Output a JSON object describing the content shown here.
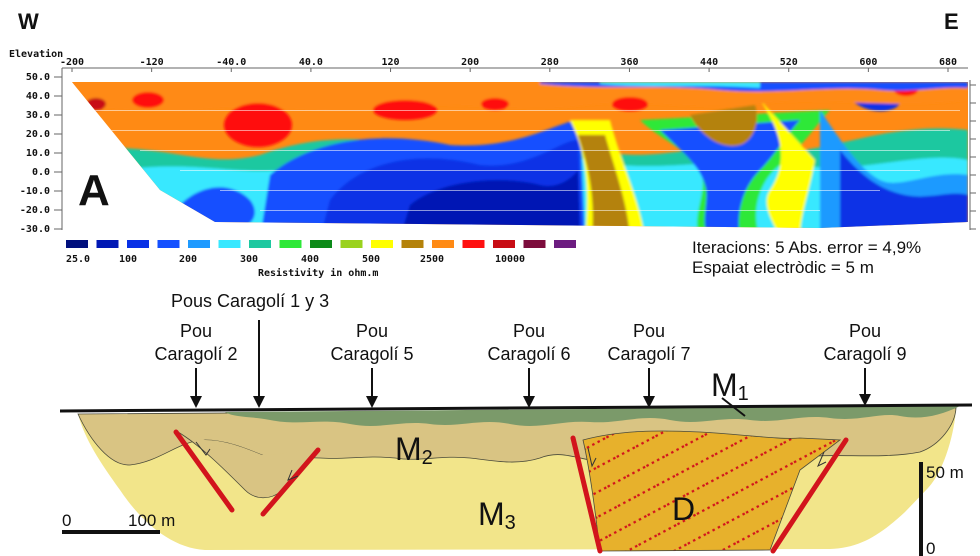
{
  "compass": {
    "west": "W",
    "east": "E"
  },
  "panel_label": "A",
  "section": {
    "elevation_label": "Elevation",
    "x_ticks": [
      "-200",
      "-120",
      "-40.0",
      "40.0",
      "120",
      "200",
      "280",
      "360",
      "440",
      "520",
      "600",
      "680"
    ],
    "y_ticks": [
      "50.0",
      "40.0",
      "30.0",
      "20.0",
      "10.0",
      "0.0",
      "-10.0",
      "-20.0",
      "-30.0"
    ]
  },
  "legend": {
    "title": "Resistivity in ohm.m",
    "swatch_colors": [
      "#000f7d",
      "#0018b4",
      "#0830e6",
      "#1450ff",
      "#1e9aff",
      "#38e8ff",
      "#1ec8a0",
      "#2ee838",
      "#0c8a18",
      "#9ad21e",
      "#ffff00",
      "#b4820a",
      "#ff8a14",
      "#ff1010",
      "#c80c14",
      "#7c0c3c",
      "#6c1c80"
    ],
    "tick_labels": [
      "25.0",
      "100",
      "200",
      "300",
      "400",
      "500",
      "2500",
      "10000"
    ]
  },
  "inversion_info": {
    "line1": "Iteracions: 5 Abs. error = 4,9%",
    "line2": "Espaiat electròdic = 5 m"
  },
  "wells": [
    {
      "line1": "Pous Caragolí 1 y 3",
      "line2": ""
    },
    {
      "line1": "Pou",
      "line2": "Caragolí 2"
    },
    {
      "line1": "Pou",
      "line2": "Caragolí 5"
    },
    {
      "line1": "Pou",
      "line2": "Caragolí 6"
    },
    {
      "line1": "Pou",
      "line2": "Caragolí 7"
    },
    {
      "line1": "Pou",
      "line2": "Caragolí 9"
    }
  ],
  "units": {
    "m1": {
      "base": "M",
      "sub": "1"
    },
    "m2": {
      "base": "M",
      "sub": "2"
    },
    "m3": {
      "base": "M",
      "sub": "3"
    },
    "d": "D"
  },
  "scale_bar": {
    "start": "0",
    "end": "100 m"
  },
  "vertical_scale": {
    "top": "50 m",
    "bottom": "0"
  },
  "colors": {
    "m1": "#7b9a6a",
    "m2": "#d9c483",
    "m3": "#f2e58a",
    "d_fill": "#e7b12c",
    "fault": "#d2141c"
  }
}
